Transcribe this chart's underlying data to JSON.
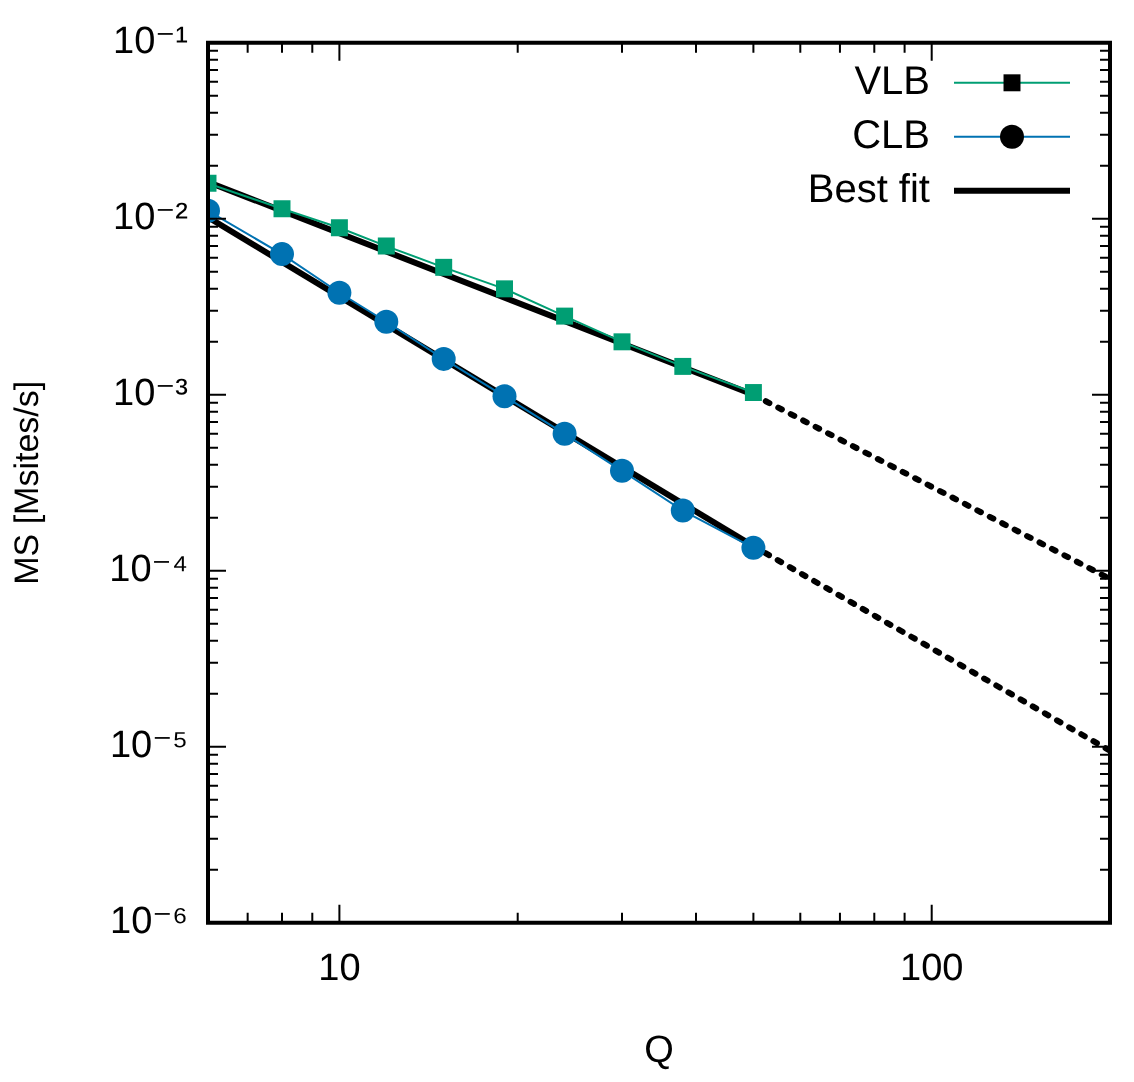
{
  "chart_data": {
    "type": "line",
    "xlabel": "Q",
    "ylabel": "MS [Msites/s]",
    "log": "xy",
    "grid": false,
    "legend": "top right",
    "xlim": [
      6,
      200
    ],
    "ylim": [
      1e-06,
      0.1
    ],
    "xticks": [
      {
        "value": 6,
        "label": null
      },
      {
        "value": 7,
        "label": null
      },
      {
        "value": 8,
        "label": null
      },
      {
        "value": 9,
        "label": null
      },
      10,
      {
        "value": 20,
        "label": null
      },
      {
        "value": 30,
        "label": null
      },
      {
        "value": 40,
        "label": null
      },
      {
        "value": 50,
        "label": null
      },
      {
        "value": 60,
        "label": null
      },
      {
        "value": 70,
        "label": null
      },
      {
        "value": 80,
        "label": null
      },
      {
        "value": 90,
        "label": null
      },
      100,
      {
        "value": 200,
        "label": null
      }
    ],
    "yticks": [
      {
        "value": 1e-06,
        "label": "10⁻⁶"
      },
      {
        "value": 2e-06,
        "label": null
      },
      {
        "value": 3e-06,
        "label": null
      },
      {
        "value": 4e-06,
        "label": null
      },
      {
        "value": 5e-06,
        "label": null
      },
      {
        "value": 6e-06,
        "label": null
      },
      {
        "value": 7e-06,
        "label": null
      },
      {
        "value": 8e-06,
        "label": null
      },
      {
        "value": 9e-06,
        "label": null
      },
      {
        "value": 1e-05,
        "label": "10⁻⁵"
      },
      {
        "value": 2e-05,
        "label": null
      },
      {
        "value": 3e-05,
        "label": null
      },
      {
        "value": 4e-05,
        "label": null
      },
      {
        "value": 5e-05,
        "label": null
      },
      {
        "value": 6e-05,
        "label": null
      },
      {
        "value": 7e-05,
        "label": null
      },
      {
        "value": 8e-05,
        "label": null
      },
      {
        "value": 9e-05,
        "label": null
      },
      {
        "value": 0.0001,
        "label": "10⁻⁴"
      },
      {
        "value": 0.0002,
        "label": null
      },
      {
        "value": 0.0003,
        "label": null
      },
      {
        "value": 0.0004,
        "label": null
      },
      {
        "value": 0.0005,
        "label": null
      },
      {
        "value": 0.0006,
        "label": null
      },
      {
        "value": 0.0007,
        "label": null
      },
      {
        "value": 0.0008,
        "label": null
      },
      {
        "value": 0.0009,
        "label": null
      },
      {
        "value": 0.001,
        "label": "10⁻³"
      },
      {
        "value": 0.002,
        "label": null
      },
      {
        "value": 0.003,
        "label": null
      },
      {
        "value": 0.004,
        "label": null
      },
      {
        "value": 0.005,
        "label": null
      },
      {
        "value": 0.006,
        "label": null
      },
      {
        "value": 0.007,
        "label": null
      },
      {
        "value": 0.008,
        "label": null
      },
      {
        "value": 0.009,
        "label": null
      },
      {
        "value": 0.01,
        "label": "10⁻²"
      },
      {
        "value": 0.02,
        "label": null
      },
      {
        "value": 0.03,
        "label": null
      },
      {
        "value": 0.04,
        "label": null
      },
      {
        "value": 0.05,
        "label": null
      },
      {
        "value": 0.06,
        "label": null
      },
      {
        "value": 0.07,
        "label": null
      },
      {
        "value": 0.08,
        "label": null
      },
      {
        "value": 0.09,
        "label": null
      },
      {
        "value": 0.1,
        "label": "10⁻¹"
      }
    ],
    "series": [
      {
        "name": "VLB",
        "color": "#009e73",
        "marker": "square",
        "line_style": "solid",
        "x": [
          6,
          8,
          10,
          12,
          15,
          19,
          24,
          30,
          38,
          50
        ],
        "values": [
          0.0159,
          0.0114,
          0.0089,
          0.007,
          0.0053,
          0.004,
          0.0028,
          0.002,
          0.00145,
          0.00103
        ]
      },
      {
        "name": "CLB",
        "color": "#0072b2",
        "marker": "circle",
        "line_style": "solid",
        "x": [
          6,
          8,
          10,
          12,
          15,
          19,
          24,
          30,
          38,
          50
        ],
        "values": [
          0.0111,
          0.0063,
          0.0038,
          0.0026,
          0.0016,
          0.00098,
          0.0006,
          0.00037,
          0.00022,
          0.000135
        ]
      },
      {
        "name": "Best fit",
        "color": "#000000",
        "marker": "none",
        "line_style": "solid",
        "x": [
          6,
          50
        ],
        "values": [
          0.0162,
          0.001
        ]
      },
      {
        "color": "#000000",
        "marker": "none",
        "line_style": "solid",
        "x": [
          6,
          50
        ],
        "values": [
          0.0102,
          0.000138
        ]
      },
      {
        "color": "#000000",
        "marker": "none",
        "line_style": "dotted",
        "x": [
          50,
          200
        ],
        "values": [
          0.001,
          9e-05
        ]
      },
      {
        "color": "#000000",
        "marker": "none",
        "line_style": "dotted",
        "x": [
          50,
          200
        ],
        "values": [
          0.000138,
          9.5e-06
        ]
      }
    ]
  }
}
